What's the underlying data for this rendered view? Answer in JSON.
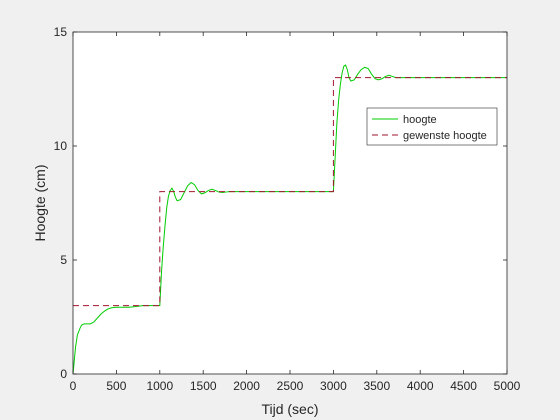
{
  "chart_data": {
    "type": "line",
    "xlabel": "Tijd (sec)",
    "ylabel": "Hoogte (cm)",
    "xlim": [
      0,
      5000
    ],
    "ylim": [
      0,
      15
    ],
    "xticks": [
      0,
      500,
      1000,
      1500,
      2000,
      2500,
      3000,
      3500,
      4000,
      4500,
      5000
    ],
    "yticks": [
      0,
      5,
      10,
      15
    ],
    "grid": false,
    "legend_position": "top-right",
    "series": [
      {
        "name": "hoogte",
        "color": "#00cc00",
        "style": "solid",
        "x": [
          0,
          15,
          30,
          50,
          80,
          100,
          130,
          160,
          200,
          240,
          280,
          320,
          360,
          400,
          440,
          480,
          520,
          560,
          600,
          650,
          700,
          750,
          800,
          850,
          900,
          950,
          1000,
          1020,
          1040,
          1060,
          1080,
          1100,
          1120,
          1140,
          1160,
          1180,
          1200,
          1240,
          1280,
          1320,
          1360,
          1400,
          1440,
          1480,
          1520,
          1560,
          1600,
          1640,
          1680,
          1720,
          1760,
          1800,
          1850,
          1900,
          2000,
          2200,
          2500,
          2800,
          3000,
          3020,
          3040,
          3060,
          3080,
          3100,
          3120,
          3140,
          3160,
          3180,
          3200,
          3240,
          3280,
          3320,
          3360,
          3400,
          3440,
          3480,
          3520,
          3560,
          3600,
          3640,
          3680,
          3720,
          3800,
          4000,
          4500,
          5000
        ],
        "y": [
          0,
          0.6,
          1.2,
          1.7,
          2.0,
          2.15,
          2.2,
          2.2,
          2.2,
          2.28,
          2.45,
          2.62,
          2.75,
          2.85,
          2.9,
          2.92,
          2.93,
          2.93,
          2.93,
          2.93,
          2.95,
          2.97,
          3.0,
          3.0,
          3.0,
          3.0,
          3.0,
          4.5,
          5.6,
          6.5,
          7.3,
          7.8,
          8.05,
          8.15,
          8.0,
          7.75,
          7.6,
          7.65,
          7.95,
          8.25,
          8.4,
          8.3,
          8.05,
          7.9,
          7.95,
          8.05,
          8.1,
          8.05,
          7.98,
          7.96,
          7.98,
          8.0,
          8.0,
          8.0,
          8.0,
          8.0,
          8.0,
          8.0,
          8.0,
          9.5,
          11.0,
          12.0,
          12.7,
          13.2,
          13.5,
          13.55,
          13.35,
          13.0,
          12.85,
          12.9,
          13.15,
          13.35,
          13.45,
          13.4,
          13.15,
          12.95,
          12.9,
          12.95,
          13.05,
          13.1,
          13.05,
          13.0,
          13.0,
          13.0,
          13.0,
          13.0
        ]
      },
      {
        "name": "gewenste hoogte",
        "color": "#a2142f",
        "style": "dashed",
        "x": [
          0,
          1000,
          1000,
          3000,
          3000,
          5000
        ],
        "y": [
          3,
          3,
          8,
          8,
          13,
          13
        ]
      }
    ]
  }
}
